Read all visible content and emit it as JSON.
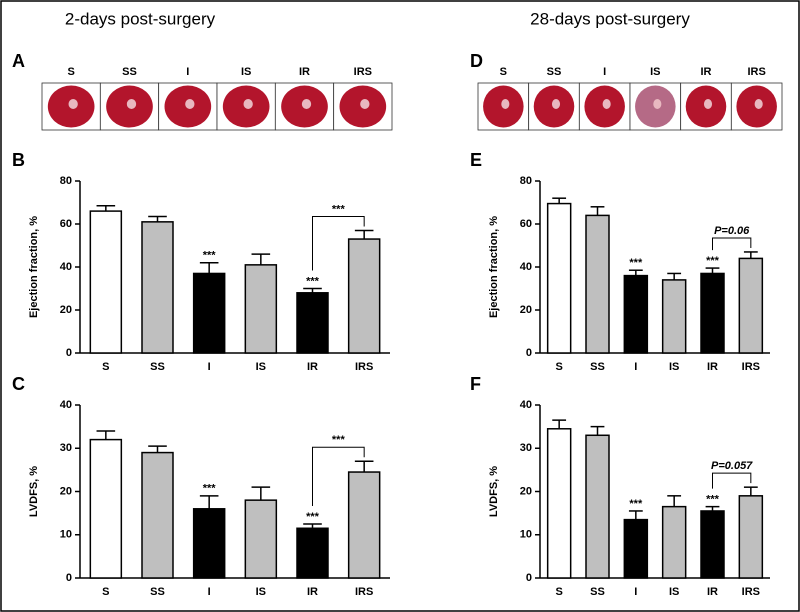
{
  "headers": [
    "2-days post-surgery",
    "28-days post-surgery"
  ],
  "image_panels": [
    {
      "letter": "A",
      "labels": [
        "S",
        "SS",
        "I",
        "IS",
        "IR",
        "IRS"
      ]
    },
    {
      "letter": "D",
      "labels": [
        "S",
        "SS",
        "I",
        "IS",
        "IR",
        "IRS"
      ]
    }
  ],
  "chart_data": [
    {
      "type": "bar",
      "letter": "B",
      "ylabel": "Ejection fraction, %",
      "categories": [
        "S",
        "SS",
        "I",
        "IS",
        "IR",
        "IRS"
      ],
      "values": [
        66,
        61,
        37,
        41,
        28,
        53
      ],
      "errors": [
        2.5,
        2.5,
        5,
        5,
        2,
        4
      ],
      "colors": [
        "#ffffff",
        "#bfbfbf",
        "#000000",
        "#bfbfbf",
        "#000000",
        "#bfbfbf"
      ],
      "ylim": [
        0,
        80
      ],
      "yticks": [
        0,
        20,
        40,
        60,
        80
      ],
      "significance": [
        null,
        null,
        "***",
        null,
        "***",
        null
      ],
      "bracket": {
        "label": "***",
        "categories": [
          "IR",
          "IRS"
        ]
      }
    },
    {
      "type": "bar",
      "letter": "C",
      "ylabel": "LVDFS, %",
      "categories": [
        "S",
        "SS",
        "I",
        "IS",
        "IR",
        "IRS"
      ],
      "values": [
        32,
        29,
        16,
        18,
        11.5,
        24.5
      ],
      "errors": [
        2,
        1.5,
        3,
        3,
        1,
        2.5
      ],
      "colors": [
        "#ffffff",
        "#bfbfbf",
        "#000000",
        "#bfbfbf",
        "#000000",
        "#bfbfbf"
      ],
      "ylim": [
        0,
        40
      ],
      "yticks": [
        0,
        10,
        20,
        30,
        40
      ],
      "significance": [
        null,
        null,
        "***",
        null,
        "***",
        null
      ],
      "bracket": {
        "label": "***",
        "categories": [
          "IR",
          "IRS"
        ]
      }
    },
    {
      "type": "bar",
      "letter": "E",
      "ylabel": "Ejection fraction, %",
      "categories": [
        "S",
        "SS",
        "I",
        "IS",
        "IR",
        "IRS"
      ],
      "values": [
        69.5,
        64,
        36,
        34,
        37,
        44
      ],
      "errors": [
        2.5,
        4,
        2.5,
        3,
        2.5,
        3
      ],
      "colors": [
        "#ffffff",
        "#bfbfbf",
        "#000000",
        "#bfbfbf",
        "#000000",
        "#bfbfbf"
      ],
      "ylim": [
        0,
        80
      ],
      "yticks": [
        0,
        20,
        40,
        60,
        80
      ],
      "significance": [
        null,
        null,
        "***",
        null,
        "***",
        null
      ],
      "bracket": {
        "label": "P=0.06",
        "categories": [
          "IR",
          "IRS"
        ]
      }
    },
    {
      "type": "bar",
      "letter": "F",
      "ylabel": "LVDFS, %",
      "categories": [
        "S",
        "SS",
        "I",
        "IS",
        "IR",
        "IRS"
      ],
      "values": [
        34.5,
        33,
        13.5,
        16.5,
        15.5,
        19
      ],
      "errors": [
        2,
        2,
        2,
        2.5,
        1,
        2
      ],
      "colors": [
        "#ffffff",
        "#bfbfbf",
        "#000000",
        "#bfbfbf",
        "#000000",
        "#bfbfbf"
      ],
      "ylim": [
        0,
        40
      ],
      "yticks": [
        0,
        10,
        20,
        30,
        40
      ],
      "significance": [
        null,
        null,
        "***",
        null,
        "***",
        null
      ],
      "bracket": {
        "label": "P=0.057",
        "categories": [
          "IR",
          "IRS"
        ]
      }
    }
  ]
}
